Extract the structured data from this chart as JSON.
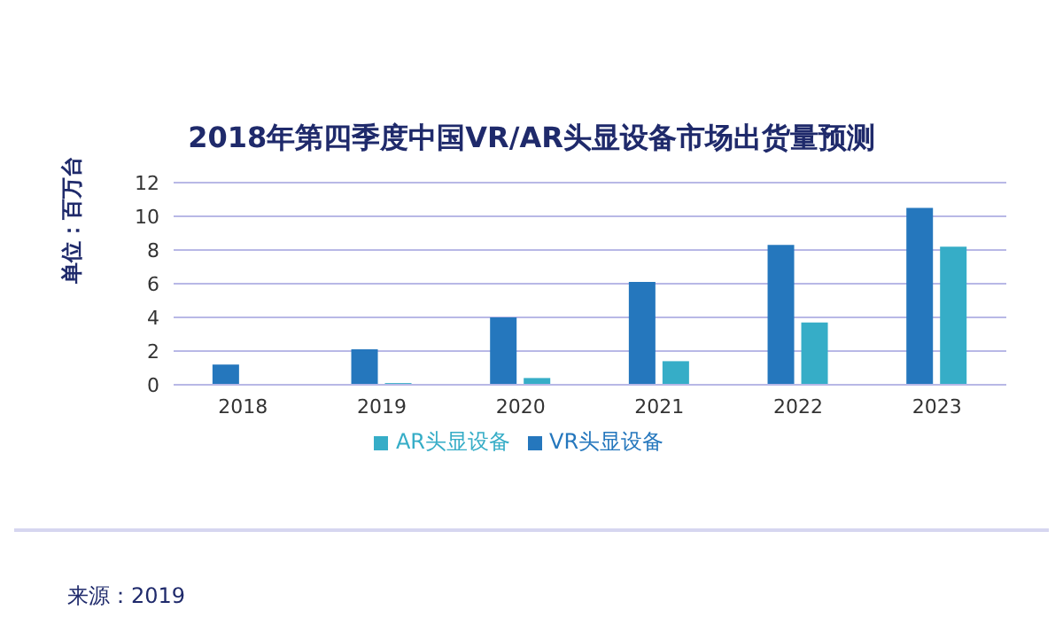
{
  "chart_data": {
    "type": "bar",
    "title": "2018年第四季度中国VR/AR头显设备市场出货量预测",
    "ylabel": "单位：百万台",
    "categories": [
      "2018",
      "2019",
      "2020",
      "2021",
      "2022",
      "2023"
    ],
    "series": [
      {
        "name": "VR头显设备",
        "color": "#2577bd",
        "values": [
          1.2,
          2.1,
          4.0,
          6.1,
          8.3,
          10.5
        ]
      },
      {
        "name": "AR头显设备",
        "color": "#36adc7",
        "values": [
          0,
          0.1,
          0.4,
          1.4,
          3.7,
          8.2
        ]
      }
    ],
    "ylim": [
      0,
      12
    ],
    "yticks": [
      0,
      2,
      4,
      6,
      8,
      10,
      12
    ],
    "grid": "y",
    "legend": "bottom",
    "annotations": [
      "来源：2019"
    ]
  }
}
